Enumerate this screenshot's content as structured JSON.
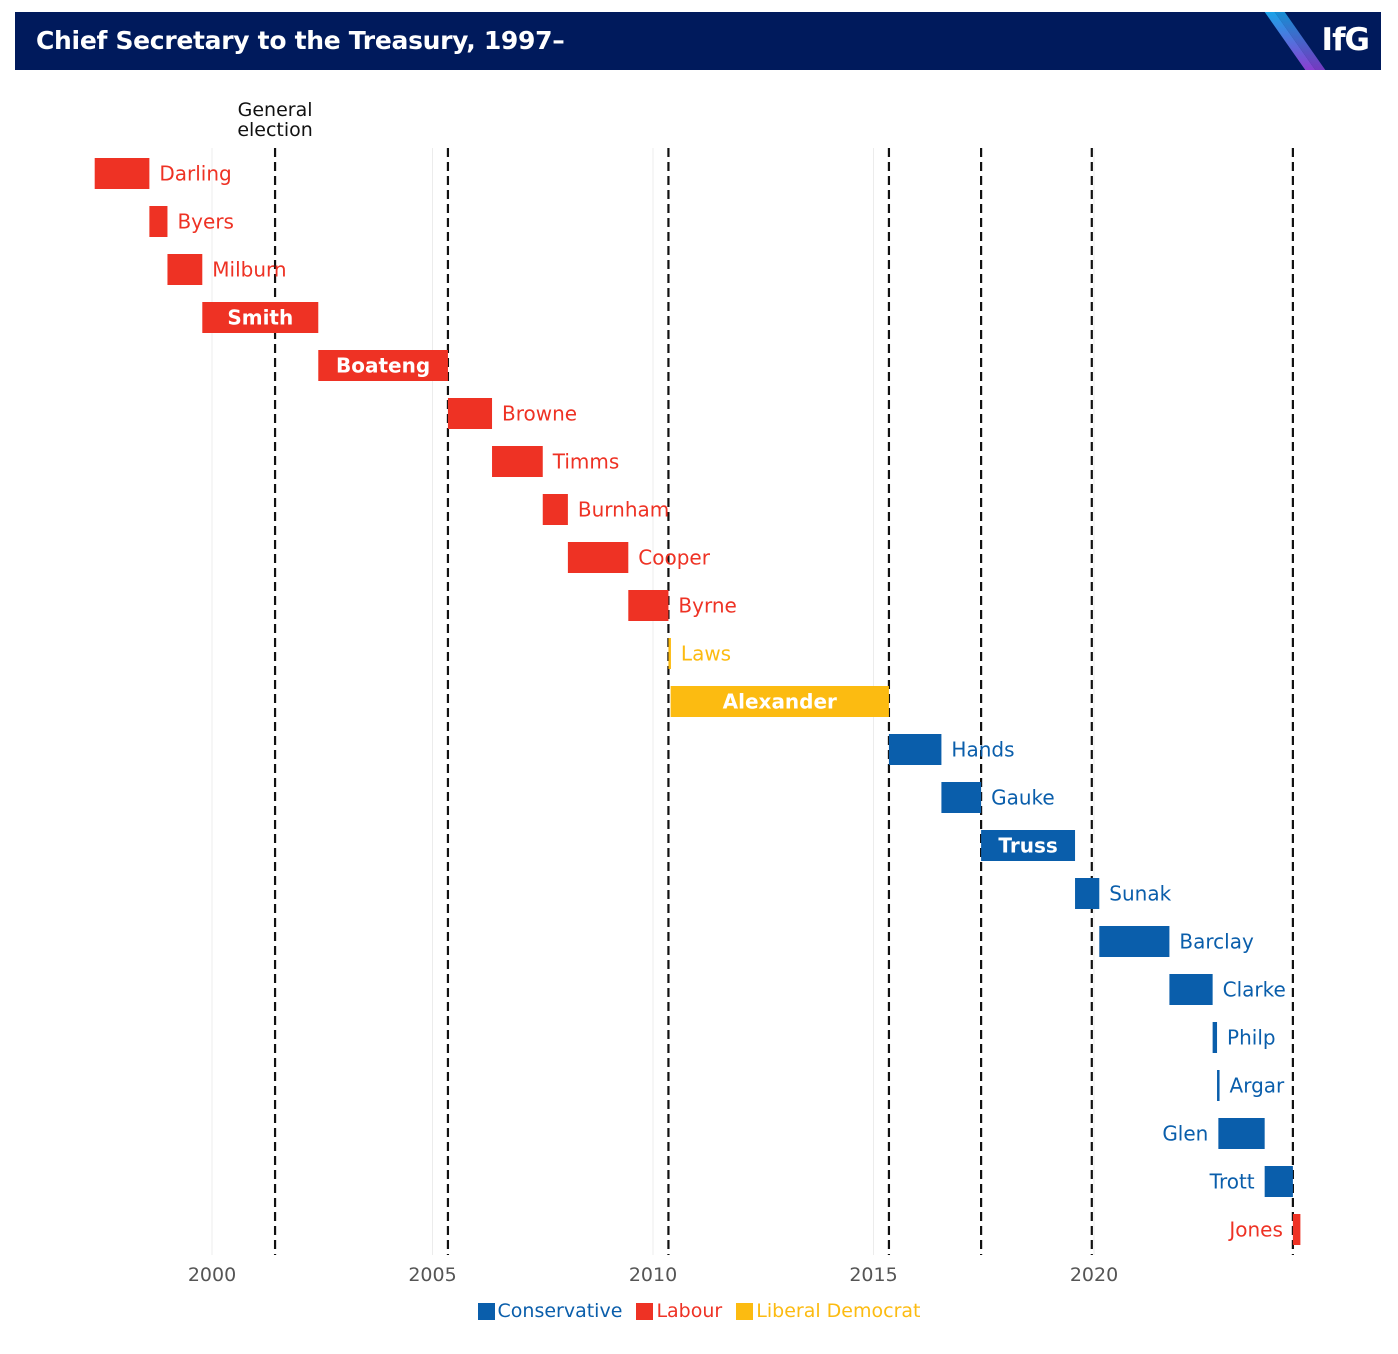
{
  "header": {
    "title": "Chief Secretary to the Treasury, 1997–",
    "logo": "IfG",
    "logo_stripe_colors": [
      "#1ba3e8",
      "#8a3fd1"
    ]
  },
  "colors": {
    "Labour": "#ee3224",
    "Liberal Democrat": "#fcbb11",
    "Conservative": "#0a5eab",
    "background": "#ffffff",
    "header": "#001a5c"
  },
  "legend": [
    {
      "label": "Conservative",
      "party": "Conservative"
    },
    {
      "label": "Labour",
      "party": "Labour"
    },
    {
      "label": "Liberal Democrat",
      "party": "Liberal Democrat"
    }
  ],
  "chart_data": {
    "type": "gantt",
    "title": "Chief Secretary to the Treasury, 1997–",
    "xlabel": "",
    "ylabel": "",
    "xlim": [
      1997.35,
      2024.75
    ],
    "xticks": [
      2000,
      2005,
      2010,
      2015,
      2020
    ],
    "election_label": "General\nelection",
    "elections": [
      2001.43,
      2005.35,
      2010.35,
      2015.35,
      2017.44,
      2019.95,
      2024.51
    ],
    "bars": [
      {
        "name": "Darling",
        "party": "Labour",
        "start": 1997.34,
        "end": 1998.58,
        "label": "outside"
      },
      {
        "name": "Byers",
        "party": "Labour",
        "start": 1998.58,
        "end": 1998.99,
        "label": "outside"
      },
      {
        "name": "Milburn",
        "party": "Labour",
        "start": 1998.99,
        "end": 1999.78,
        "label": "outside"
      },
      {
        "name": "Smith",
        "party": "Labour",
        "start": 1999.78,
        "end": 2002.41,
        "label": "inside"
      },
      {
        "name": "Boateng",
        "party": "Labour",
        "start": 2002.41,
        "end": 2005.35,
        "label": "inside"
      },
      {
        "name": "Browne",
        "party": "Labour",
        "start": 2005.35,
        "end": 2006.35,
        "label": "outside"
      },
      {
        "name": "Timms",
        "party": "Labour",
        "start": 2006.35,
        "end": 2007.5,
        "label": "outside"
      },
      {
        "name": "Burnham",
        "party": "Labour",
        "start": 2007.5,
        "end": 2008.07,
        "label": "outside"
      },
      {
        "name": "Cooper",
        "party": "Labour",
        "start": 2008.07,
        "end": 2009.44,
        "label": "outside"
      },
      {
        "name": "Byrne",
        "party": "Labour",
        "start": 2009.44,
        "end": 2010.35,
        "label": "outside"
      },
      {
        "name": "Laws",
        "party": "Liberal Democrat",
        "start": 2010.35,
        "end": 2010.4,
        "label": "outside"
      },
      {
        "name": "Alexander",
        "party": "Liberal Democrat",
        "start": 2010.4,
        "end": 2015.35,
        "label": "inside"
      },
      {
        "name": "Hands",
        "party": "Conservative",
        "start": 2015.35,
        "end": 2016.54,
        "label": "outside"
      },
      {
        "name": "Gauke",
        "party": "Conservative",
        "start": 2016.54,
        "end": 2017.44,
        "label": "outside"
      },
      {
        "name": "Truss",
        "party": "Conservative",
        "start": 2017.44,
        "end": 2019.57,
        "label": "inside"
      },
      {
        "name": "Sunak",
        "party": "Conservative",
        "start": 2019.57,
        "end": 2020.12,
        "label": "outside"
      },
      {
        "name": "Barclay",
        "party": "Conservative",
        "start": 2020.12,
        "end": 2021.71,
        "label": "outside"
      },
      {
        "name": "Clarke",
        "party": "Conservative",
        "start": 2021.71,
        "end": 2022.69,
        "label": "outside"
      },
      {
        "name": "Philp",
        "party": "Conservative",
        "start": 2022.69,
        "end": 2022.79,
        "label": "outside"
      },
      {
        "name": "Argar",
        "party": "Conservative",
        "start": 2022.79,
        "end": 2022.82,
        "label": "outside"
      },
      {
        "name": "Glen",
        "party": "Conservative",
        "start": 2022.82,
        "end": 2023.87,
        "label": "left"
      },
      {
        "name": "Trott",
        "party": "Conservative",
        "start": 2023.87,
        "end": 2024.51,
        "label": "left"
      },
      {
        "name": "Jones",
        "party": "Labour",
        "start": 2024.51,
        "end": 2024.68,
        "label": "left"
      }
    ]
  }
}
